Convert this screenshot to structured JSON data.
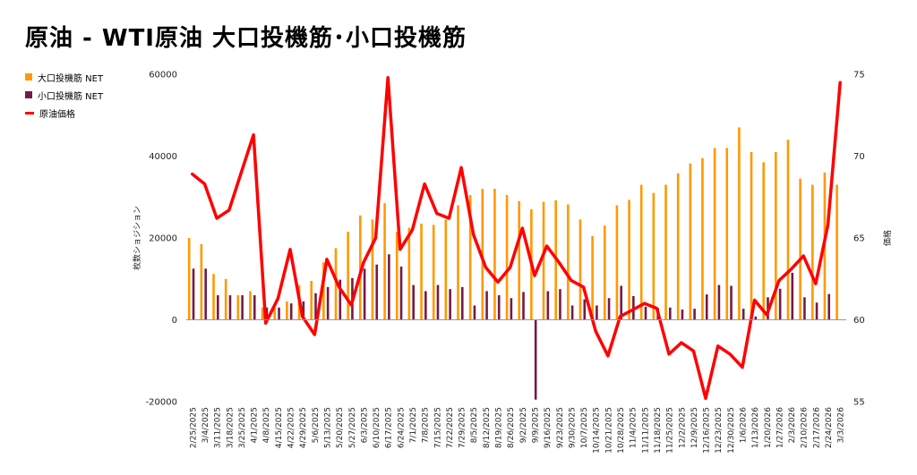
{
  "title": "原油 - WTI原油 大口投機筋･小口投機筋",
  "chart_data": {
    "type": "bar",
    "categories": [
      "2/25/2025",
      "3/4/2025",
      "3/11/2025",
      "3/18/2025",
      "3/25/2025",
      "4/1/2025",
      "4/8/2025",
      "4/15/2025",
      "4/22/2025",
      "4/29/2025",
      "5/6/2025",
      "5/13/2025",
      "5/20/2025",
      "5/27/2025",
      "6/3/2025",
      "6/10/2025",
      "6/17/2025",
      "6/24/2025",
      "7/1/2025",
      "7/8/2025",
      "7/15/2025",
      "7/22/2025",
      "7/29/2025",
      "8/5/2025",
      "8/12/2025",
      "8/19/2025",
      "8/26/2025",
      "9/2/2025",
      "9/9/2025",
      "9/16/2025",
      "9/23/2025",
      "9/30/2025",
      "10/7/2025",
      "10/14/2025",
      "10/21/2025",
      "10/28/2025",
      "11/4/2025",
      "11/11/2025",
      "11/18/2025",
      "11/25/2025",
      "12/2/2025",
      "12/9/2025",
      "12/16/2025",
      "12/23/2025",
      "12/30/2025",
      "1/6/2026",
      "1/13/2026",
      "1/20/2026",
      "1/27/2026",
      "2/3/2026",
      "2/10/2026",
      "2/17/2026",
      "2/24/2026",
      "3/3/2026"
    ],
    "series": [
      {
        "name": "大口投機筋 NET",
        "type": "bar",
        "axis": "left",
        "color": "#FF9900",
        "values": [
          20000,
          18500,
          11200,
          10000,
          6000,
          7000,
          3000,
          3000,
          4500,
          8500,
          9500,
          14000,
          17500,
          21500,
          25500,
          24500,
          28500,
          21500,
          22500,
          23500,
          23200,
          24500,
          28000,
          30500,
          32000,
          32000,
          30500,
          29000,
          27000,
          28800,
          29200,
          28200,
          24500,
          20500,
          23000,
          28000,
          29300,
          33000,
          31000,
          33000,
          35800,
          38200,
          39500,
          42000,
          42000,
          47000,
          41000,
          38500,
          41000,
          44000,
          34500,
          33000,
          36000,
          33000
        ],
        "labeled": false
      },
      {
        "name": "小口投機筋 NET",
        "type": "bar",
        "axis": "left",
        "color": "#741B47",
        "values": [
          12500,
          12500,
          6000,
          6000,
          6000,
          6000,
          3000,
          3000,
          4000,
          4500,
          6500,
          8000,
          9800,
          10200,
          12500,
          13500,
          16000,
          13000,
          8500,
          7000,
          8500,
          7500,
          8000,
          3500,
          7000,
          6000,
          5300,
          6800,
          -19500,
          7000,
          7500,
          3500,
          5000,
          3500,
          5300,
          8300,
          5800,
          3200,
          2800,
          3000,
          2500,
          2700,
          6200,
          8500,
          8300,
          2700,
          800,
          5500,
          7600,
          11500,
          5500,
          4200,
          6300,
          0
        ]
      },
      {
        "name": "原油価格",
        "type": "line",
        "axis": "right",
        "color": "#FF0000",
        "values": [
          68.9,
          68.3,
          66.2,
          66.7,
          69.0,
          71.3,
          59.8,
          61.3,
          64.3,
          60.2,
          59.1,
          63.7,
          62.0,
          60.9,
          63.5,
          65.0,
          74.8,
          64.3,
          65.5,
          68.3,
          66.5,
          66.2,
          69.3,
          65.2,
          63.2,
          62.3,
          63.2,
          65.6,
          62.7,
          64.5,
          63.5,
          62.4,
          62.0,
          59.3,
          57.8,
          60.2,
          60.6,
          61.0,
          60.7,
          57.9,
          58.6,
          58.1,
          55.2,
          58.4,
          57.9,
          57.1,
          61.2,
          60.3,
          62.4,
          63.1,
          63.9,
          62.2,
          65.8,
          74.5
        ]
      }
    ],
    "yaxis_left": {
      "label": "枚数ショジション",
      "range": [
        -20000,
        60000
      ],
      "ticks": [
        -20000,
        0,
        20000,
        40000,
        60000
      ]
    },
    "yaxis_right": {
      "label": "価格",
      "range": [
        55,
        75
      ],
      "ticks": [
        55,
        60,
        65,
        70,
        75
      ]
    },
    "grid": false,
    "legend_position": "top-left"
  },
  "legend": {
    "items": [
      {
        "label": "大口投機筋  NET",
        "color": "#FF9900",
        "kind": "box"
      },
      {
        "label": "小口投機筋  NET",
        "color": "#741B47",
        "kind": "box"
      },
      {
        "label": "原油価格",
        "color": "#FF0000",
        "kind": "line"
      }
    ]
  }
}
